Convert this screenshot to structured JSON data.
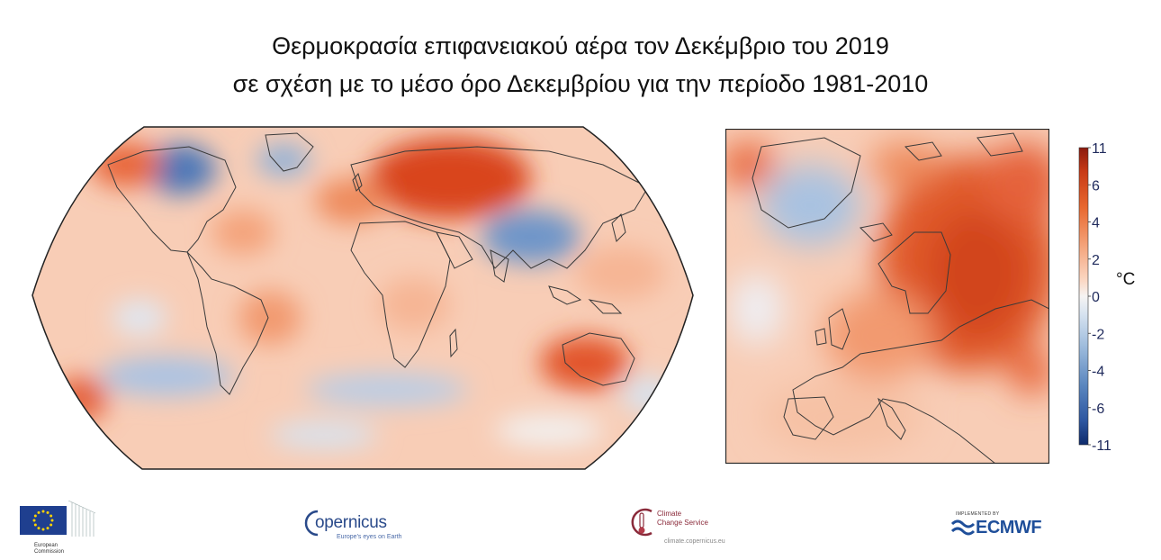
{
  "title": {
    "line1": "Θερμοκρασία επιφανειακού αέρα τον Δεκέμβριο του 2019",
    "line2": "σε σχέση με το μέσο όρο Δεκεμβρίου για την περίοδο 1981-2010"
  },
  "colorbar": {
    "ticks": [
      "11",
      "6",
      "4",
      "2",
      "0",
      "-2",
      "-4",
      "-6",
      "-11"
    ],
    "tick_values": [
      11,
      6,
      4,
      2,
      0,
      -2,
      -4,
      -6,
      -11
    ],
    "unit": "°C",
    "tick_color": "#1f2a5c",
    "colors_top_to_bottom": [
      "#8b1a0e",
      "#c83a16",
      "#e8672e",
      "#f4a37a",
      "#fbd9c6",
      "#f6f4f3",
      "#d7e3f0",
      "#9dbbdc",
      "#5a86bf",
      "#2d56a0",
      "#0d2a6b"
    ]
  },
  "logos": {
    "european_commission": {
      "line1": "European",
      "line2": "Commission",
      "icon": "eu-flag-icon"
    },
    "copernicus": {
      "name": "opernicus",
      "tagline": "Europe's eyes on Earth",
      "icon": "copernicus-c-icon"
    },
    "climate_change_service": {
      "line1": "Climate",
      "line2": "Change Service",
      "url": "climate.copernicus.eu",
      "icon": "thermometer-icon"
    },
    "ecmwf": {
      "implemented": "IMPLEMENTED BY",
      "name": "ECMWF",
      "icon": "ecmwf-wave-icon"
    }
  }
}
